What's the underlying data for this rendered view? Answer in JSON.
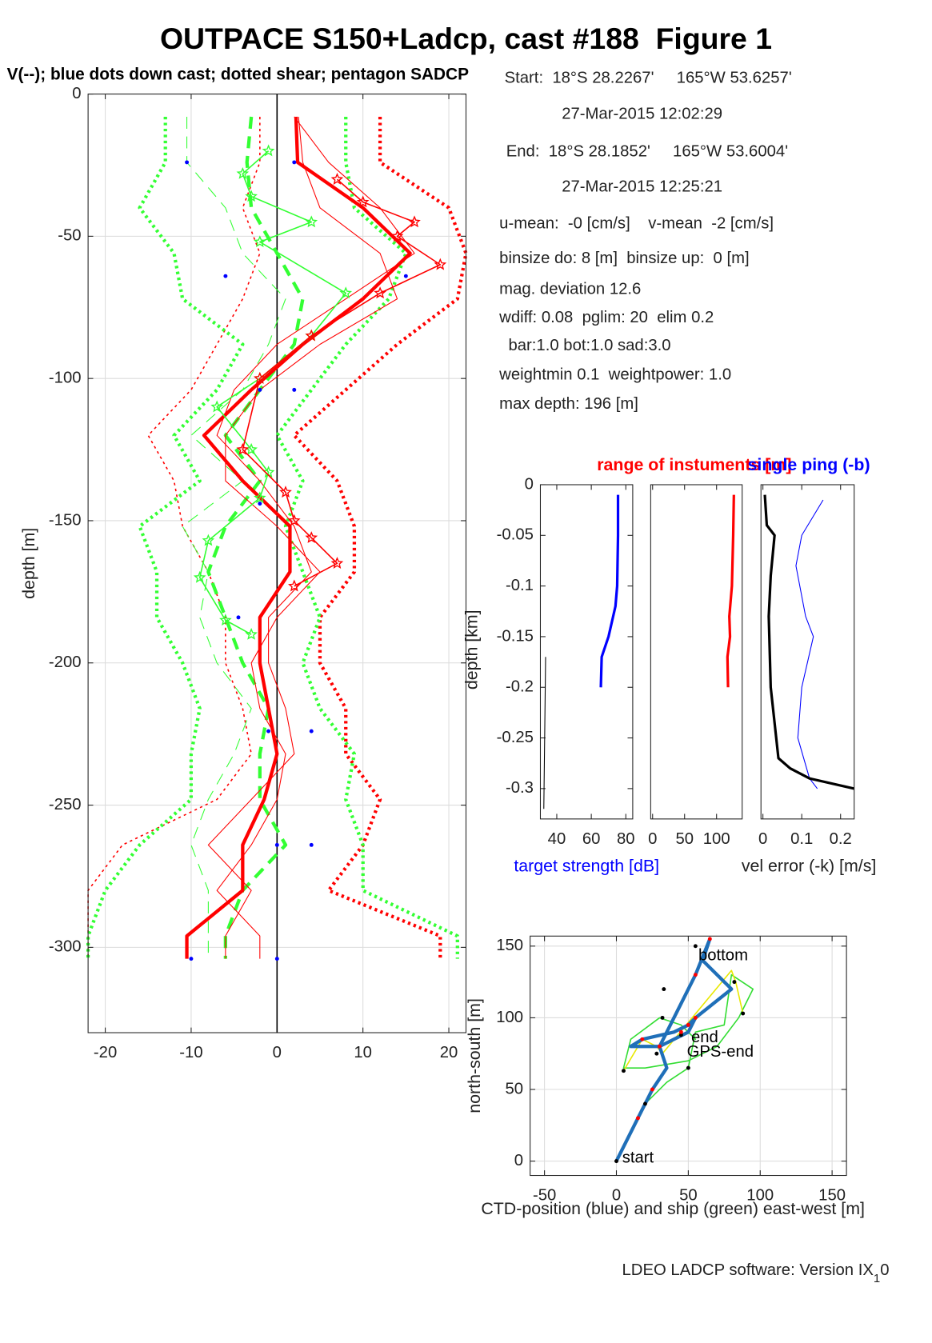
{
  "title": "OUTPACE S150+Ladcp, cast #188  Figure 1",
  "info": [
    "Start:  18°S 28.2267'     165°W 53.6257'",
    "27-Mar-2015 12:02:29",
    "End:  18°S 28.1852'     165°W 53.6004'",
    "27-Mar-2015 12:25:21",
    "u-mean:  -0 [cm/s]    v-mean  -2 [cm/s]",
    "binsize do: 8 [m]  binsize up:  0 [m]",
    "mag. deviation 12.6",
    "wdiff: 0.08  pglim: 20  elim 0.2",
    "  bar:1.0 bot:1.0 sad:3.0",
    "weightmin 0.1  weightpower: 1.0",
    "max depth: 196 [m]"
  ],
  "footer": {
    "text": "LDEO LADCP software: Version IX",
    "sub": "1",
    "tail": "0"
  },
  "chart_data": [
    {
      "type": "line",
      "subtitle": "V(--); blue dots down cast; dotted shear; pentagon SADCP",
      "ylabel": "depth [m]",
      "xlim": [
        -22,
        22
      ],
      "xticks": [
        -20,
        -10,
        0,
        10,
        20
      ],
      "ylim": [
        -330,
        0
      ],
      "yticks": [
        0,
        -50,
        -100,
        -150,
        -200,
        -250,
        -300
      ],
      "grid": true,
      "zero_line": true,
      "y": [
        -8,
        -24,
        -40,
        -56,
        -72,
        -88,
        -104,
        -120,
        -136,
        -152,
        -168,
        -184,
        -200,
        -216,
        -232,
        -248,
        -264,
        -280,
        -296,
        -304
      ],
      "series": [
        {
          "color": "#ff0000",
          "width": 1.5,
          "style": "dotted",
          "x": [
            -2,
            -2,
            -4,
            -2,
            -4,
            -7,
            -10,
            -15,
            -12,
            -11,
            -8,
            -6,
            -6,
            -4,
            -3,
            -7,
            -18,
            -22,
            -22,
            -22
          ]
        },
        {
          "color": "#ff0000",
          "width": 4,
          "style": "dotted",
          "x": [
            12,
            12,
            20,
            22,
            21,
            14,
            8,
            2,
            7,
            9,
            9,
            5,
            5,
            8,
            8,
            12,
            10,
            6,
            19,
            19
          ]
        },
        {
          "color": "#33ff33",
          "width": 4,
          "style": "dotted",
          "x": [
            -13,
            -13,
            -16,
            -12,
            -11,
            -4,
            -7,
            -12,
            -9,
            -16,
            -14,
            -14,
            -11,
            -9,
            -10,
            -10,
            -16,
            -20,
            -22,
            -22
          ]
        },
        {
          "color": "#33ff33",
          "width": 4,
          "style": "dotted",
          "x": [
            8,
            8,
            9,
            15,
            13,
            8,
            4,
            0,
            3,
            1,
            3,
            5,
            3,
            5,
            9,
            8,
            10,
            10,
            21,
            21
          ]
        },
        {
          "color": "#33ff33",
          "width": 1,
          "style": "dashed",
          "x": [
            -10.5,
            -10.5,
            -6,
            -4,
            1,
            -1,
            -4,
            -10,
            -4,
            -11,
            -8,
            -9,
            -7,
            -3,
            -5,
            -8,
            -10,
            -8,
            -8,
            -8
          ]
        },
        {
          "color": "#33ff33",
          "width": 4,
          "style": "dashed",
          "x": [
            -3,
            -3.5,
            -3,
            0,
            3,
            2,
            -2,
            -6,
            -2,
            -6,
            -8,
            -6,
            -4,
            -1,
            -2,
            -2,
            1,
            -4,
            -6,
            -6
          ]
        },
        {
          "color": "#ff0000",
          "width": 1,
          "style": "solid",
          "x": [
            2,
            6,
            12,
            16,
            8,
            0,
            -5,
            -7,
            -2,
            2,
            4,
            -1,
            -1,
            1,
            2,
            -3,
            -8,
            -3,
            -6,
            -6
          ]
        },
        {
          "color": "#ff0000",
          "width": 1,
          "style": "solid",
          "x": [
            2.5,
            3,
            5,
            12,
            14,
            5,
            -2,
            -6,
            -6,
            0,
            5,
            0,
            -3,
            -2,
            1,
            0,
            -3,
            -7,
            -2,
            -2
          ]
        },
        {
          "color": "#ff0000",
          "width": 4,
          "style": "solid",
          "x": [
            2.2,
            2.4,
            10,
            15.5,
            10,
            3,
            -3,
            -8.5,
            -4,
            1.5,
            1.5,
            -2,
            -2,
            -1,
            0,
            -1.5,
            -4,
            -4,
            -10.5,
            -10.5
          ]
        },
        {
          "color": "#33ff33",
          "width": 1.5,
          "style": "solid",
          "marker": "star",
          "y": [
            -20,
            -28,
            -36,
            -45,
            -52,
            -70,
            -85,
            -100,
            -110,
            -125,
            -133,
            -142,
            -157,
            -170,
            -185,
            -190
          ],
          "x": [
            -1,
            -4,
            -3,
            4,
            -2,
            8,
            4,
            -2,
            -7,
            -3,
            -1,
            -2,
            -8,
            -9,
            -6,
            -3
          ]
        },
        {
          "color": "#ff0000",
          "width": 1.5,
          "style": "solid",
          "marker": "star",
          "y": [
            -30,
            -38,
            -45,
            -50,
            -60,
            -70,
            -85,
            -100,
            -125,
            -140,
            -150,
            -156,
            -165,
            -173
          ],
          "x": [
            7,
            10,
            16,
            14,
            19,
            12,
            4,
            -2,
            -4,
            1,
            2,
            4,
            7,
            2
          ]
        },
        {
          "color": "#0000ff",
          "style": "none",
          "marker": "dot",
          "y": [
            -24,
            -24,
            -64,
            -64,
            -104,
            -104,
            -144,
            -184,
            -224,
            -224,
            -264,
            -264,
            -304,
            -304
          ],
          "x": [
            -10.5,
            2,
            -6,
            15,
            -2,
            2,
            -2,
            -4.5,
            -1,
            4,
            0,
            4,
            -10,
            0
          ]
        }
      ]
    },
    {
      "type": "line",
      "ylabel": "depth [km]",
      "xlabel": "target strength [dB]",
      "xlabel_color": "#0000ff",
      "xlim": [
        30.5,
        84
      ],
      "xticks": [
        40,
        60,
        80
      ],
      "ylim": [
        -0.33,
        0
      ],
      "yticks": [
        0,
        -0.05,
        -0.1,
        -0.15,
        -0.2,
        -0.25,
        -0.3
      ],
      "series": [
        {
          "color": "#0000ff",
          "width": 3,
          "style": "solid",
          "y": [
            -0.01,
            -0.05,
            -0.1,
            -0.12,
            -0.15,
            -0.17,
            -0.2
          ],
          "x": [
            75.5,
            75.5,
            75,
            74,
            70,
            66,
            65.5
          ]
        },
        {
          "color": "#000000",
          "width": 1,
          "style": "solid",
          "y": [
            -0.17,
            -0.25,
            -0.32
          ],
          "x": [
            33.5,
            33,
            32.5
          ]
        }
      ]
    },
    {
      "type": "line",
      "title": "range of instuments [m]",
      "title_color": "#ff0000",
      "xlim": [
        -3,
        140
      ],
      "xticks": [
        0,
        50,
        100
      ],
      "ylim": [
        -0.33,
        0
      ],
      "series": [
        {
          "color": "#ff0000",
          "width": 3,
          "style": "solid",
          "y": [
            -0.01,
            -0.05,
            -0.1,
            -0.13,
            -0.15,
            -0.17,
            -0.2
          ],
          "x": [
            127,
            126,
            124,
            120,
            121,
            117,
            118
          ]
        }
      ]
    },
    {
      "type": "line",
      "title": "single ping (-b)",
      "title_color": "#0000ff",
      "xlabel": "vel error (-k) [m/s]",
      "xlim": [
        -0.005,
        0.235
      ],
      "xticks": [
        0,
        0.1,
        0.2
      ],
      "ylim": [
        -0.33,
        0
      ],
      "series": [
        {
          "color": "#0000ff",
          "width": 1,
          "style": "solid",
          "y": [
            -0.015,
            -0.05,
            -0.08,
            -0.13,
            -0.15,
            -0.2,
            -0.25,
            -0.29,
            -0.3
          ],
          "x": [
            0.155,
            0.1,
            0.085,
            0.11,
            0.13,
            0.1,
            0.09,
            0.12,
            0.14
          ]
        },
        {
          "color": "#000000",
          "width": 3,
          "style": "solid",
          "y": [
            -0.01,
            -0.04,
            -0.05,
            -0.09,
            -0.13,
            -0.2,
            -0.27,
            -0.28,
            -0.29,
            -0.3
          ],
          "x": [
            0.005,
            0.01,
            0.03,
            0.02,
            0.015,
            0.02,
            0.04,
            0.07,
            0.12,
            0.235
          ]
        }
      ]
    },
    {
      "type": "line",
      "xlabel": "CTD-position (blue) and ship (green) east-west [m]",
      "ylabel": "north-south [m]",
      "xlim": [
        -60,
        160
      ],
      "xticks": [
        -50,
        0,
        50,
        100,
        150
      ],
      "ylim": [
        -10,
        157
      ],
      "yticks": [
        0,
        50,
        100,
        150
      ],
      "grid": true,
      "series": [
        {
          "color": "#33dd33",
          "width": 1.5,
          "style": "solid",
          "y": [
            0,
            40,
            55,
            65,
            90,
            95,
            130,
            120,
            100,
            80,
            70,
            65,
            65,
            85,
            100,
            95,
            85,
            90
          ],
          "x": [
            0,
            20,
            35,
            50,
            55,
            75,
            80,
            95,
            85,
            70,
            50,
            20,
            5,
            10,
            30,
            45,
            55,
            50
          ]
        },
        {
          "color": "#e8e800",
          "width": 1.5,
          "style": "solid",
          "y": [
            63,
            85,
            80,
            75,
            133,
            125,
            103
          ],
          "x": [
            5,
            18,
            28,
            32,
            80,
            83,
            88
          ]
        },
        {
          "color": "#1f6fb8",
          "width": 4,
          "style": "solid",
          "y": [
            0,
            30,
            50,
            65,
            80,
            80,
            85,
            90,
            95,
            100,
            90,
            80,
            100,
            130,
            155,
            140,
            120,
            100
          ],
          "x": [
            0,
            15,
            25,
            35,
            30,
            10,
            18,
            40,
            50,
            55,
            50,
            30,
            40,
            55,
            65,
            60,
            80,
            55
          ]
        },
        {
          "color": "#000000",
          "style": "none",
          "marker": "dot",
          "y": [
            0,
            40,
            63,
            75,
            88,
            100,
            120,
            65,
            103,
            125,
            150
          ],
          "x": [
            0,
            20,
            5,
            28,
            45,
            32,
            33,
            50,
            88,
            82,
            55
          ]
        },
        {
          "color": "#ff0000",
          "style": "none",
          "marker": "dot",
          "y": [
            30,
            50,
            85,
            80,
            95,
            100,
            130,
            155,
            90
          ],
          "x": [
            15,
            25,
            18,
            30,
            50,
            55,
            55,
            65,
            45
          ]
        }
      ],
      "annotations": [
        {
          "text": "bottom",
          "x": 57,
          "y": 143
        },
        {
          "text": "end",
          "x": 52,
          "y": 86
        },
        {
          "text": "GPS-end",
          "x": 49,
          "y": 76
        },
        {
          "text": "start",
          "x": 4,
          "y": 2
        }
      ]
    }
  ]
}
